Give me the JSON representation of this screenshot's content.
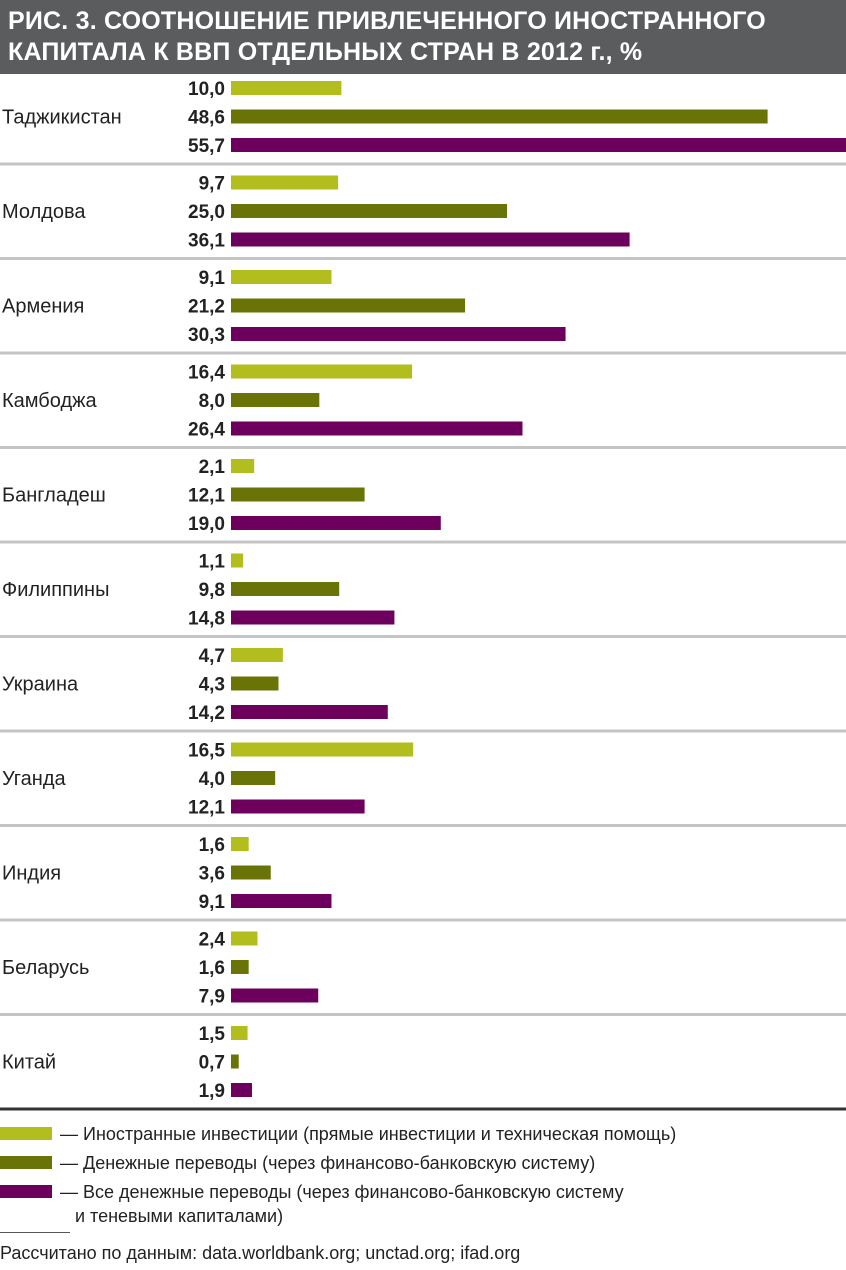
{
  "title_lines": [
    "РИС. 3. СООТНОШЕНИЕ ПРИВЛЕЧЕННОГО ИНОСТРАННОГО",
    "КАПИТАЛА К ВВП ОТДЕЛЬНЫХ СТРАН В 2012 г., %"
  ],
  "chart_data": {
    "type": "bar",
    "orientation": "horizontal",
    "title": "РИС. 3. СООТНОШЕНИЕ ПРИВЛЕЧЕННОГО ИНОСТРАННОГО КАПИТАЛА К ВВП ОТДЕЛЬНЫХ СТРАН В 2012 г., %",
    "categories": [
      "Таджикистан",
      "Молдова",
      "Армения",
      "Камбоджа",
      "Бангладеш",
      "Филиппины",
      "Украина",
      "Уганда",
      "Индия",
      "Беларусь",
      "Китай"
    ],
    "series": [
      {
        "name": "— Иностранные инвестиции (прямые инвестиции и техническая помощь)",
        "color": "#b2bd1e",
        "values": [
          10.0,
          9.7,
          9.1,
          16.4,
          2.1,
          1.1,
          4.7,
          16.5,
          1.6,
          2.4,
          1.5
        ]
      },
      {
        "name": "— Денежные переводы (через финансово-банковскую систему)",
        "color": "#6a7406",
        "values": [
          48.6,
          25.0,
          21.2,
          8.0,
          12.1,
          9.8,
          4.3,
          4.0,
          3.6,
          1.6,
          0.7
        ]
      },
      {
        "name": "— Все денежные переводы (через финансово-банковскую систему и теневыми капиталами)",
        "color": "#6c005c",
        "values": [
          55.7,
          36.1,
          30.3,
          26.4,
          19.0,
          14.8,
          14.2,
          12.1,
          9.1,
          7.9,
          1.9
        ]
      }
    ],
    "xlim": [
      0,
      55.7
    ],
    "grid": false,
    "legend": "bottom"
  },
  "legend": {
    "items": [
      {
        "lines": [
          "— Иностранные инвестиции (прямые инвестиции и техническая помощь)"
        ],
        "color": "#b2bd1e"
      },
      {
        "lines": [
          "— Денежные переводы (через финансово-банковскую систему)"
        ],
        "color": "#6a7406"
      },
      {
        "lines": [
          "— Все денежные переводы (через финансово-банковскую систему",
          "и теневыми капиталами)"
        ],
        "color": "#6c005c"
      }
    ]
  },
  "source": "Рассчитано по данным: data.worldbank.org; unctad.org; ifad.org"
}
